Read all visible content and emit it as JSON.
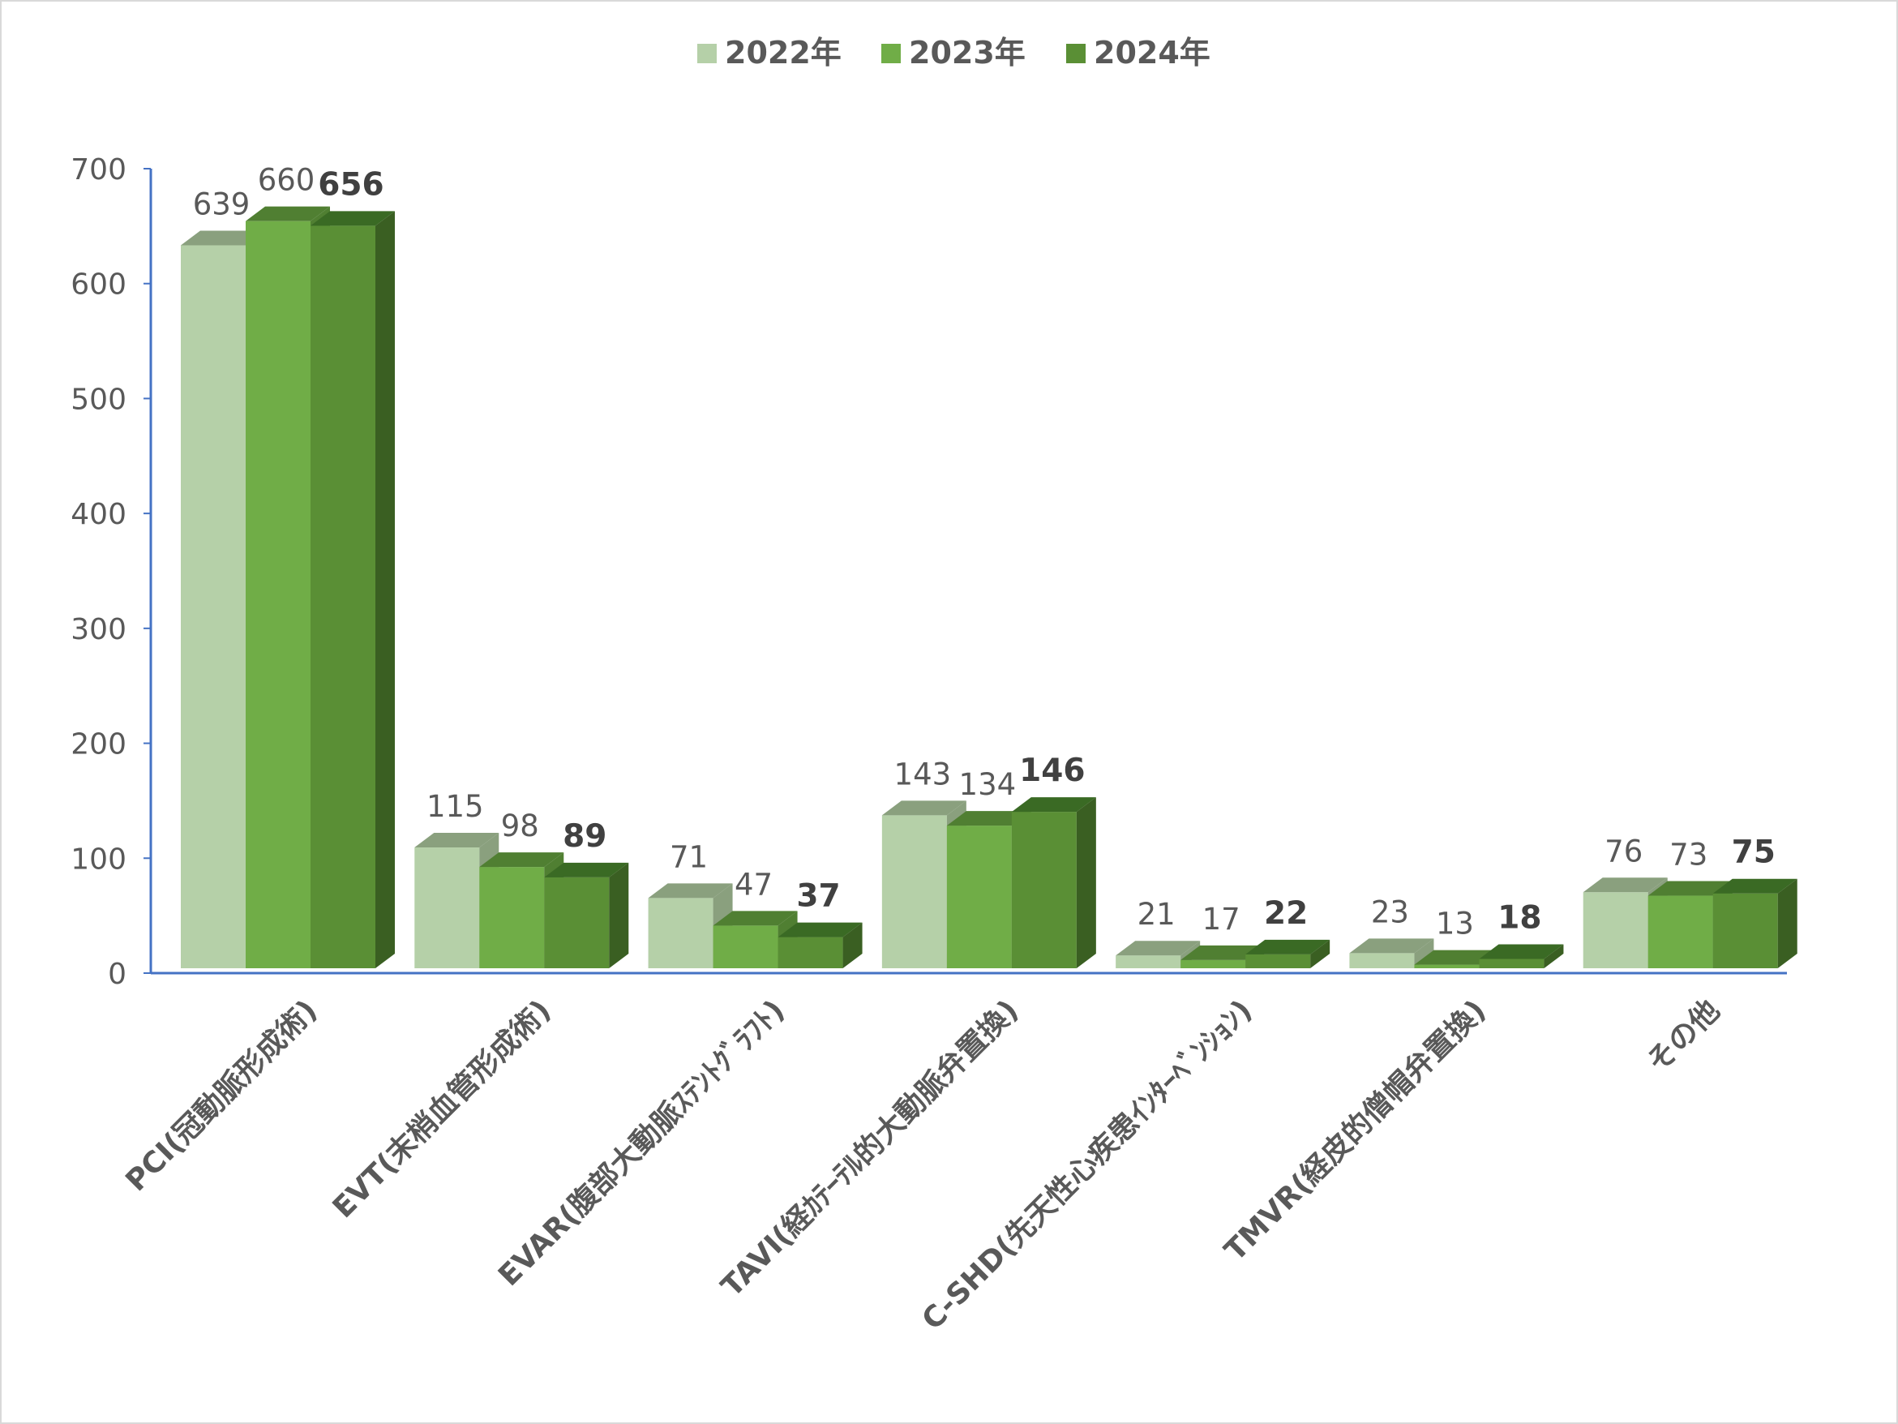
{
  "chart_data": {
    "type": "bar",
    "title": "",
    "xlabel": "",
    "ylabel": "",
    "ylim": [
      0,
      700
    ],
    "yticks": [
      0,
      100,
      200,
      300,
      400,
      500,
      600,
      700
    ],
    "grid": false,
    "legend_position": "top",
    "categories": [
      "PCI(冠動脈形成術)",
      "EVT(末梢血管形成術)",
      "EVAR(腹部大動脈ｽﾃﾝﾄｸﾞﾗﾌﾄ)",
      "TAVI(経ｶﾃｰﾃﾙ的大動脈弁置換)",
      "C-SHD(先天性心疾患ｲﾝﾀｰﾍﾞﾝｼｮﾝ)",
      "TMVR(経皮的僧帽弁置換)",
      "その他"
    ],
    "series": [
      {
        "name": "2022年",
        "color": "#b5d0a8",
        "side": "#8aa07e",
        "top": "#8aa07e",
        "values": [
          639,
          115,
          71,
          143,
          21,
          23,
          76
        ]
      },
      {
        "name": "2023年",
        "color": "#70ad47",
        "side": "#507f32",
        "top": "#507f32",
        "values": [
          660,
          98,
          47,
          134,
          17,
          13,
          73
        ]
      },
      {
        "name": "2024年",
        "color": "#5a8f35",
        "side": "#3a5f22",
        "top": "#3a6a24",
        "values": [
          656,
          89,
          37,
          146,
          22,
          18,
          75
        ]
      }
    ],
    "bold_series": "2024年",
    "axis_color": "#4472c4"
  }
}
